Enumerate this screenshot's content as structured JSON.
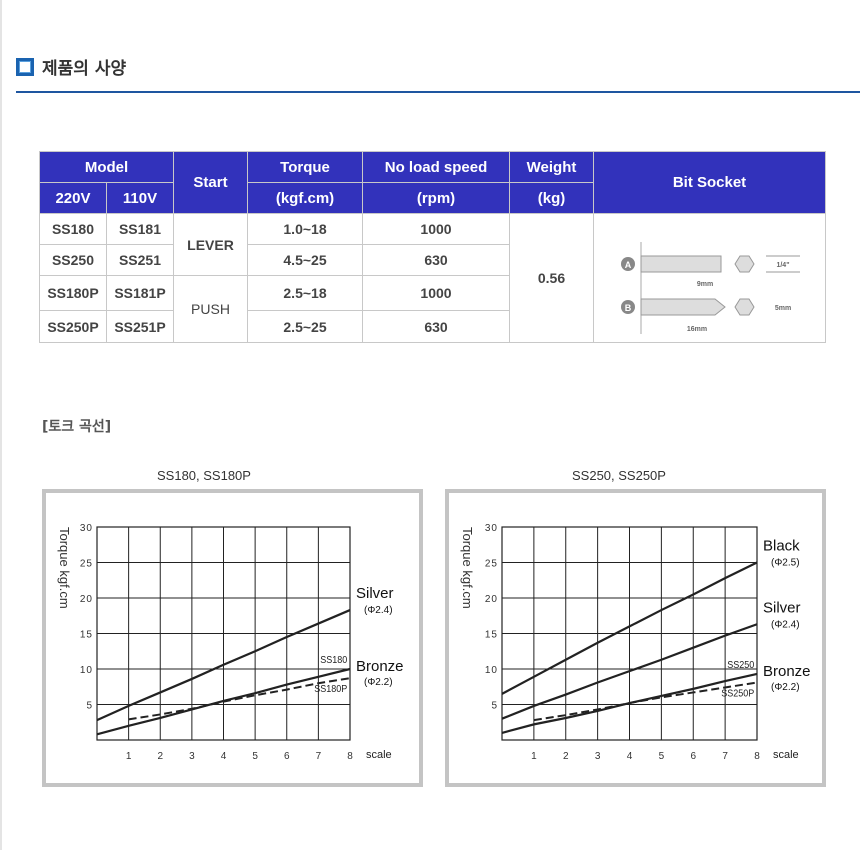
{
  "header": {
    "title": "제품의 사양",
    "icon": "square-icon",
    "accent": "#1e56a0"
  },
  "table": {
    "header": {
      "model": "Model",
      "v220": "220V",
      "v110": "110V",
      "start": "Start",
      "torque": "Torque",
      "torque_unit": "(kgf.cm)",
      "speed": "No load speed",
      "speed_unit": "(rpm)",
      "weight": "Weight",
      "weight_unit": "(kg)",
      "bit": "Bit Socket"
    },
    "rows": [
      {
        "m220": "SS180",
        "m110": "SS181",
        "torque": "1.0~18",
        "speed": "1000"
      },
      {
        "m220": "SS250",
        "m110": "SS251",
        "torque": "4.5~25",
        "speed": "630"
      },
      {
        "m220": "SS180P",
        "m110": "SS181P",
        "torque": "2.5~18",
        "speed": "1000"
      },
      {
        "m220": "SS250P",
        "m110": "SS251P",
        "torque": "2.5~25",
        "speed": "630"
      }
    ],
    "start_lever": "LEVER",
    "start_push": "PUSH",
    "weight": "0.56",
    "bit": {
      "a": "A",
      "b": "B",
      "a_len": "9mm",
      "b_len": "16mm",
      "a_size": "1/4\"",
      "b_size": "5mm"
    },
    "header_color": "#3232bb"
  },
  "section2": {
    "title": "[토크 곡선]"
  },
  "chart_data": [
    {
      "type": "line",
      "title": "SS180, SS180P",
      "ylabel": "Torque kgf.cm",
      "xlabel": "scale",
      "xlim": [
        0,
        8
      ],
      "ylim": [
        0,
        30
      ],
      "xticks": [
        "1",
        "2",
        "3",
        "4",
        "5",
        "6",
        "7",
        "8"
      ],
      "yticks": [
        "5",
        "10",
        "15",
        "20",
        "25",
        "30"
      ],
      "grid": true,
      "series": [
        {
          "name": "Silver",
          "sub": "(Φ2.4)",
          "style": "solid",
          "x": [
            0,
            1,
            2,
            3,
            4,
            5,
            6,
            7,
            8
          ],
          "y": [
            2.8,
            4.8,
            6.7,
            8.6,
            10.6,
            12.5,
            14.5,
            16.4,
            18.3
          ]
        },
        {
          "name": "Bronze",
          "sub": "(Φ2.2)",
          "model": "SS180",
          "style": "solid",
          "x": [
            0,
            1,
            2,
            3,
            4,
            5,
            6,
            7,
            8
          ],
          "y": [
            0.8,
            2.0,
            3.1,
            4.3,
            5.5,
            6.6,
            7.8,
            8.9,
            10.0
          ]
        },
        {
          "model": "SS180P",
          "style": "dashed",
          "x": [
            1,
            2,
            3,
            4,
            5,
            6,
            7,
            8
          ],
          "y": [
            2.9,
            3.6,
            4.4,
            5.4,
            6.3,
            7.1,
            8.0,
            8.7
          ]
        }
      ]
    },
    {
      "type": "line",
      "title": "SS250, SS250P",
      "ylabel": "Torque kgf.cm",
      "xlabel": "scale",
      "xlim": [
        0,
        8
      ],
      "ylim": [
        0,
        30
      ],
      "xticks": [
        "1",
        "2",
        "3",
        "4",
        "5",
        "6",
        "7",
        "8"
      ],
      "yticks": [
        "5",
        "10",
        "15",
        "20",
        "25",
        "30"
      ],
      "grid": true,
      "series": [
        {
          "name": "Black",
          "sub": "(Φ2.5)",
          "style": "solid",
          "x": [
            0,
            1,
            2,
            3,
            4,
            5,
            6,
            7,
            8
          ],
          "y": [
            6.5,
            8.9,
            11.3,
            13.7,
            16.0,
            18.3,
            20.5,
            22.8,
            25.0
          ]
        },
        {
          "name": "Silver",
          "sub": "(Φ2.4)",
          "style": "solid",
          "x": [
            0,
            1,
            2,
            3,
            4,
            5,
            6,
            7,
            8
          ],
          "y": [
            3.0,
            4.8,
            6.4,
            8.1,
            9.7,
            11.3,
            13.0,
            14.7,
            16.3
          ]
        },
        {
          "name": "Bronze",
          "sub": "(Φ2.2)",
          "model": "SS250",
          "style": "solid",
          "x": [
            0,
            1,
            2,
            3,
            4,
            5,
            6,
            7,
            8
          ],
          "y": [
            1.0,
            2.2,
            3.1,
            4.1,
            5.2,
            6.2,
            7.2,
            8.3,
            9.3
          ]
        },
        {
          "model": "SS250P",
          "style": "dashed",
          "x": [
            1,
            2,
            3,
            4,
            5,
            6,
            7,
            8
          ],
          "y": [
            2.8,
            3.5,
            4.3,
            5.2,
            6.0,
            6.7,
            7.4,
            8.1
          ]
        }
      ]
    }
  ]
}
